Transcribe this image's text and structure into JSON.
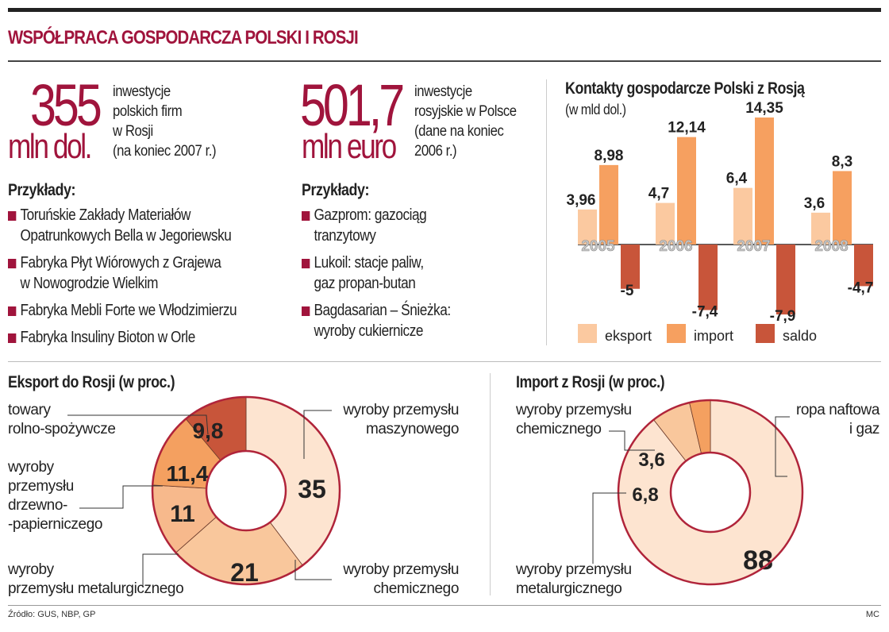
{
  "title": "WSPÓŁPRACA GOSPODARCZA POLSKI I ROSJI",
  "colors": {
    "accent": "#a0143c",
    "eksport": "#fbc9a0",
    "import": "#f6a060",
    "saldo": "#c8553a"
  },
  "left_stat": {
    "value": "355",
    "unit": "mln dol.",
    "desc": [
      "inwestycje",
      "polskich firm",
      "w Rosji",
      "(na koniec 2007 r.)"
    ],
    "examples_header": "Przykłady:",
    "examples": [
      "Toruńskie Zakłady Materiałów\nOpatrunkowych Bella w Jegoriewsku",
      "Fabryka Płyt Wiórowych z Grajewa\nw Nowogrodzie Wielkim",
      "Fabryka Mebli Forte we Włodzimierzu",
      "Fabryka Insuliny Bioton w Orle"
    ]
  },
  "right_stat": {
    "value": "501,7",
    "unit": "mln euro",
    "desc": [
      "inwestycje",
      "rosyjskie w Polsce",
      "(dane na koniec",
      "2006 r.)"
    ],
    "examples_header": "Przykłady:",
    "examples": [
      "Gazprom: gazociąg\ntranzytowy",
      "Lukoil: stacje paliw,\ngaz propan-butan",
      "Bagdasarian – Śnieżka:\nwyroby cukiernicze"
    ]
  },
  "chart_data": [
    {
      "type": "bar",
      "title": "Kontakty gospodarcze Polski z Rosją",
      "subtitle": "(w mld dol.)",
      "categories": [
        "2005",
        "2006",
        "2007",
        "2008"
      ],
      "series": [
        {
          "name": "eksport",
          "values": [
            3.96,
            4.7,
            6.4,
            3.6
          ],
          "labels": [
            "3,96",
            "4,7",
            "6,4",
            "3,6"
          ]
        },
        {
          "name": "import",
          "values": [
            8.98,
            12.14,
            14.35,
            8.3
          ],
          "labels": [
            "8,98",
            "12,14",
            "14,35",
            "8,3"
          ]
        },
        {
          "name": "saldo",
          "values": [
            -5,
            -7.4,
            -7.9,
            -4.7
          ],
          "labels": [
            "-5",
            "-7,4",
            "-7,9",
            "-4,7"
          ]
        }
      ],
      "legend": "bottom",
      "grid": false
    },
    {
      "type": "pie",
      "title": "Eksport do Rosji (w proc.)",
      "slices": [
        {
          "label": "wyroby przemysłu\nmaszynowego",
          "value": 35,
          "value_label": "35",
          "color": "#fde4d0"
        },
        {
          "label": "wyroby przemysłu\nchemicznego",
          "value": 21,
          "value_label": "21",
          "color": "#f9c79c"
        },
        {
          "label": "wyroby\nprzemysłu metalurgicznego",
          "value": 11,
          "value_label": "11",
          "color": "#f7b98c"
        },
        {
          "label": "wyroby\nprzemysłu\ndrzewno-\n-papierniczego",
          "value": 11.4,
          "value_label": "11,4",
          "color": "#f4a060"
        },
        {
          "label": "towary\nrolno-spożywcze",
          "value": 9.8,
          "value_label": "9,8",
          "color": "#c8553a"
        }
      ]
    },
    {
      "type": "pie",
      "title": "Import z Rosji (w proc.)",
      "slices": [
        {
          "label": "ropa naftowa\ni gaz",
          "value": 88,
          "value_label": "88",
          "color": "#fde4d0"
        },
        {
          "label": "wyroby przemysłu\nmetalurgicznego",
          "value": 6.8,
          "value_label": "6,8",
          "color": "#f9c79c"
        },
        {
          "label": "wyroby przemysłu\nchemicznego",
          "value": 3.6,
          "value_label": "3,6",
          "color": "#f4a060"
        }
      ]
    }
  ],
  "footer": {
    "source": "Źródło: GUS, NBP, GP",
    "credit": "MC"
  }
}
